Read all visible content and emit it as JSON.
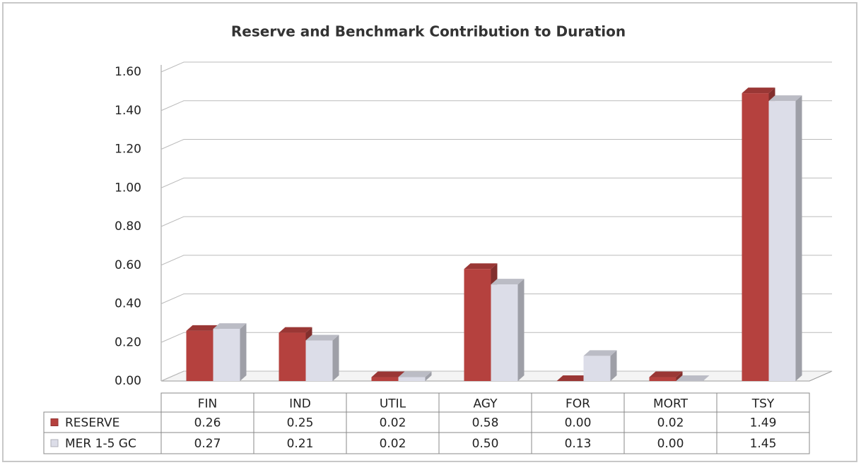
{
  "chart_data": {
    "type": "bar3d",
    "title": "Reserve and Benchmark Contribution to Duration",
    "categories": [
      "FIN",
      "IND",
      "UTIL",
      "AGY",
      "FOR",
      "MORT",
      "TSY"
    ],
    "series": [
      {
        "name": "RESERVE",
        "color": "#b5413e",
        "values": [
          0.26,
          0.25,
          0.02,
          0.58,
          0,
          0.02,
          1.49
        ],
        "value_labels": [
          "0.26",
          "0.25",
          "0.02",
          "0.58",
          "0.00",
          "0.02",
          "1.49"
        ]
      },
      {
        "name": "MER 1-5 GC",
        "color": "#dcdde8",
        "values": [
          0.27,
          0.21,
          0.02,
          0.5,
          0.13,
          0,
          1.45
        ],
        "value_labels": [
          "0.27",
          "0.21",
          "0.02",
          "0.50",
          "0.13",
          "0.00",
          "1.45"
        ]
      }
    ],
    "ylim": [
      0,
      1.6
    ],
    "yticks": [
      {
        "value": 0,
        "label": "0.00"
      },
      {
        "value": 0.2,
        "label": "0.20"
      },
      {
        "value": 0.4,
        "label": "0.40"
      },
      {
        "value": 0.6,
        "label": "0.60"
      },
      {
        "value": 0.8,
        "label": "0.80"
      },
      {
        "value": 1.0,
        "label": "1.00"
      },
      {
        "value": 1.2,
        "label": "1.20"
      },
      {
        "value": 1.4,
        "label": "1.40"
      },
      {
        "value": 1.6,
        "label": "1.60"
      }
    ],
    "grid": true
  }
}
